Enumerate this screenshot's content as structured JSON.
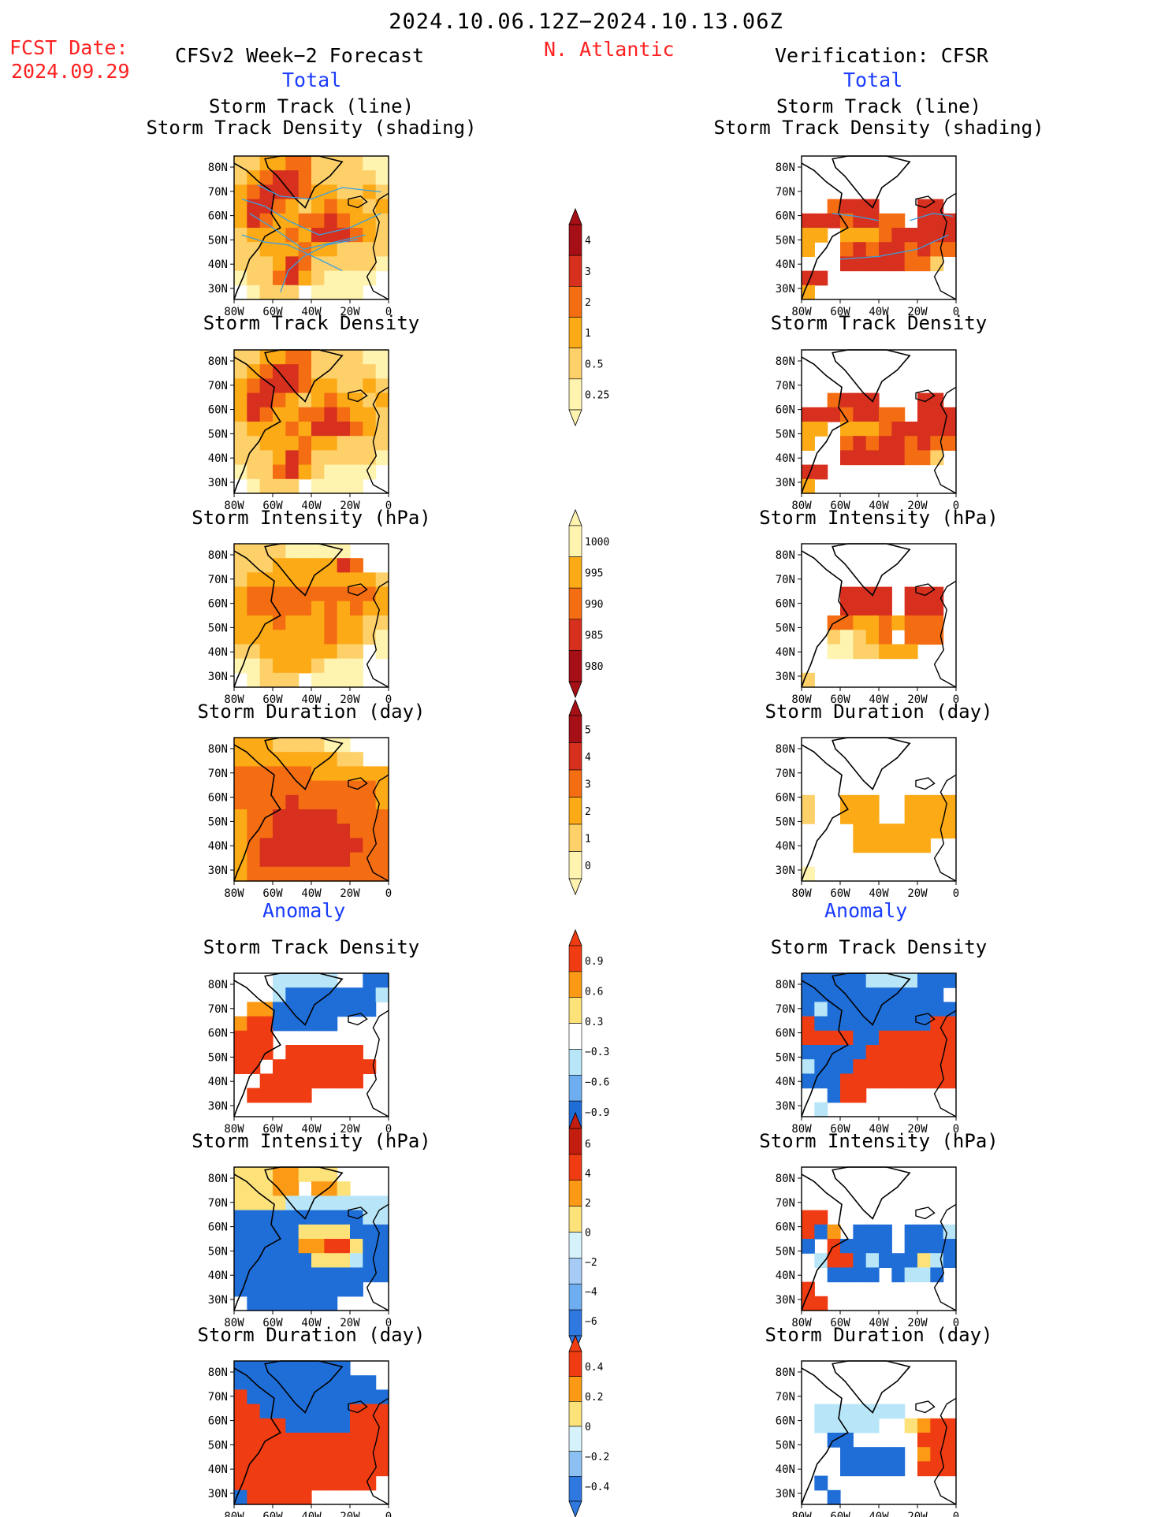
{
  "header": {
    "title": "2024.10.06.12Z−2024.10.13.06Z",
    "region": "N. Atlantic",
    "fcst_label": "FCST Date:",
    "fcst_date": "2024.09.29",
    "left_model": "CFSv2 Week−2 Forecast",
    "right_model": "Verification: CFSR",
    "total_label": "Total",
    "anomaly_label": "Anomaly"
  },
  "colors": {
    "title_red": "#ff2020",
    "section_blue": "#1a3cff",
    "track_line": "#3aa0e0",
    "coast": "#000000"
  },
  "panel_titles": {
    "track_line": "Storm Track (line)",
    "track_density_shading": "Storm Track Density (shading)",
    "track_density": "Storm Track Density",
    "intensity": "Storm Intensity (hPa)",
    "duration": "Storm Duration (day)"
  },
  "map_axes": {
    "lat_ticks": [
      "80N",
      "70N",
      "60N",
      "50N",
      "40N",
      "30N"
    ],
    "lon_ticks": [
      "80W",
      "60W",
      "40W",
      "20W",
      "0"
    ]
  },
  "colorbars": [
    {
      "id": "density",
      "labels": [
        "4",
        "3",
        "2",
        "1",
        "0.5",
        "0.25"
      ],
      "colors": [
        "#a50f15",
        "#d7301f",
        "#f46d12",
        "#fcaa16",
        "#fdd06a",
        "#fff3b0"
      ]
    },
    {
      "id": "intensity",
      "labels": [
        "1000",
        "995",
        "990",
        "985",
        "980"
      ],
      "colors": [
        "#fff3b0",
        "#fcaa16",
        "#f46d12",
        "#d7301f",
        "#a50f15"
      ]
    },
    {
      "id": "duration",
      "labels": [
        "5",
        "4",
        "3",
        "2",
        "1",
        "0"
      ],
      "colors": [
        "#a50f15",
        "#d7301f",
        "#f46d12",
        "#fcaa16",
        "#fdd06a",
        "#fff3b0"
      ]
    },
    {
      "id": "anom_density",
      "labels": [
        "0.9",
        "0.6",
        "0.3",
        "−0.3",
        "−0.6",
        "−0.9"
      ],
      "colors": [
        "#f03c12",
        "#fc9a16",
        "#fde27a",
        "#ffffff",
        "#b8e6f8",
        "#6eaef0",
        "#1f6ed8"
      ]
    },
    {
      "id": "anom_intensity",
      "labels": [
        "6",
        "4",
        "2",
        "0",
        "−2",
        "−4",
        "−6"
      ],
      "colors": [
        "#c21d0e",
        "#f03c12",
        "#fc9a16",
        "#fde27a",
        "#d6f3fb",
        "#a6ccf6",
        "#6eaef0",
        "#2f78e0"
      ]
    },
    {
      "id": "anom_duration",
      "labels": [
        "0.4",
        "0.2",
        "0",
        "−0.2",
        "−0.4"
      ],
      "colors": [
        "#f03c12",
        "#fc9a16",
        "#fde27a",
        "#d6f3fb",
        "#8cc0f2",
        "#2f78e0"
      ]
    }
  ],
  "panels": {
    "fcst_total_track": "dense",
    "cfsr_total_track": "sparse"
  }
}
